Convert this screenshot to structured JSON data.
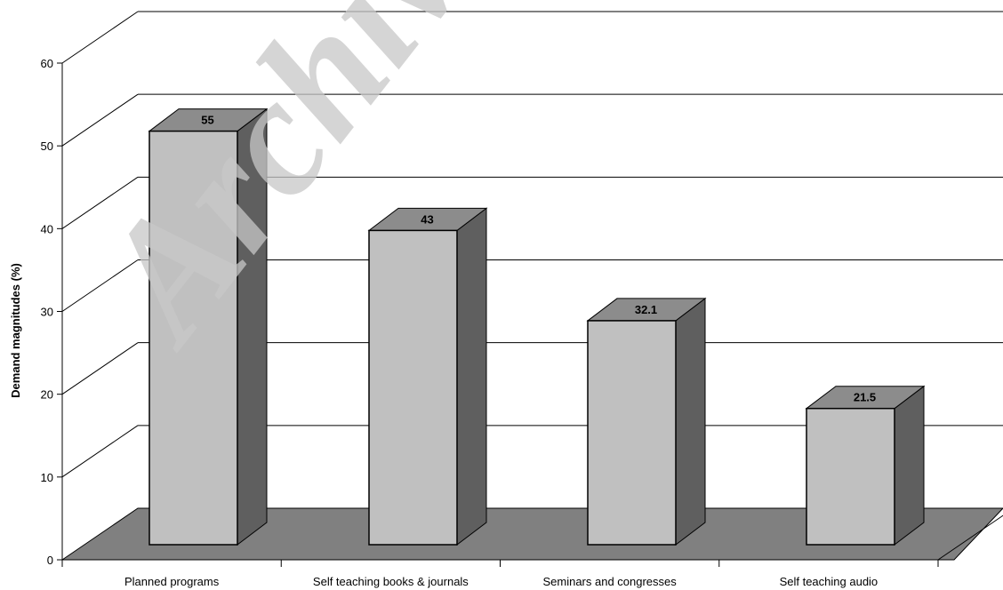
{
  "chart_data": {
    "type": "bar",
    "title": "",
    "xlabel": "",
    "ylabel": "Demand magnitudes (%)",
    "categories": [
      "Planned programs",
      "Self teaching books & journals",
      "Seminars and congresses",
      "Self teaching audio"
    ],
    "values": [
      55,
      43,
      32.1,
      21.5
    ],
    "value_labels": [
      "55",
      "43",
      "32.1",
      "21.5"
    ],
    "ylim": [
      0,
      60
    ],
    "yticks": [
      "0",
      "10",
      "20",
      "30",
      "40",
      "50",
      "60"
    ],
    "grid": true,
    "three_d": true,
    "legend": "none",
    "colors": {
      "bar_front": "#c0c0c0",
      "bar_top": "#8c8c8c",
      "bar_side": "#5f5f5f",
      "floor": "#808080",
      "grid": "#000000"
    }
  },
  "watermark": "Archive"
}
